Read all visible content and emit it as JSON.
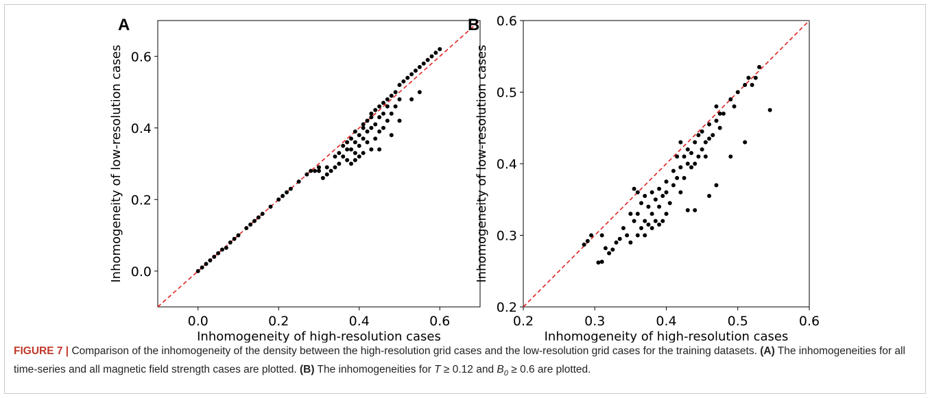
{
  "chart_data": [
    {
      "type": "scatter",
      "panel_label": "A",
      "xlabel": "Inhomogeneity of high-resolution cases",
      "ylabel": "Inhomogeneity of low-resolution cases",
      "xlim": [
        -0.1,
        0.7
      ],
      "ylim": [
        -0.1,
        0.7
      ],
      "xticks": [
        0.0,
        0.2,
        0.4,
        0.6
      ],
      "yticks": [
        0.0,
        0.2,
        0.4,
        0.6
      ],
      "xtick_labels": [
        "0.0",
        "0.2",
        "0.4",
        "0.6"
      ],
      "ytick_labels": [
        "0.0",
        "0.2",
        "0.4",
        "0.6"
      ],
      "grid": false,
      "reference_line": {
        "style": "dashed",
        "color": "#e02020",
        "label": "y = x"
      },
      "marker_color": "#000000",
      "x": [
        0.0,
        0.01,
        0.02,
        0.03,
        0.04,
        0.05,
        0.06,
        0.07,
        0.08,
        0.09,
        0.1,
        0.12,
        0.13,
        0.14,
        0.15,
        0.16,
        0.18,
        0.2,
        0.21,
        0.22,
        0.23,
        0.25,
        0.27,
        0.28,
        0.29,
        0.3,
        0.31,
        0.32,
        0.33,
        0.34,
        0.35,
        0.36,
        0.36,
        0.37,
        0.37,
        0.38,
        0.38,
        0.38,
        0.39,
        0.39,
        0.39,
        0.4,
        0.4,
        0.4,
        0.41,
        0.41,
        0.41,
        0.42,
        0.42,
        0.42,
        0.43,
        0.43,
        0.43,
        0.44,
        0.44,
        0.44,
        0.45,
        0.45,
        0.45,
        0.46,
        0.46,
        0.46,
        0.47,
        0.47,
        0.47,
        0.48,
        0.48,
        0.49,
        0.49,
        0.5,
        0.5,
        0.51,
        0.52,
        0.53,
        0.54,
        0.55,
        0.56,
        0.57,
        0.58,
        0.59,
        0.6,
        0.53,
        0.55,
        0.5,
        0.48,
        0.45,
        0.3,
        0.32,
        0.34,
        0.35,
        0.37,
        0.39,
        0.41,
        0.43
      ],
      "y": [
        0.0,
        0.01,
        0.02,
        0.03,
        0.04,
        0.05,
        0.06,
        0.065,
        0.08,
        0.09,
        0.1,
        0.12,
        0.13,
        0.14,
        0.15,
        0.16,
        0.18,
        0.2,
        0.21,
        0.22,
        0.23,
        0.25,
        0.27,
        0.28,
        0.28,
        0.28,
        0.26,
        0.27,
        0.28,
        0.29,
        0.3,
        0.32,
        0.35,
        0.31,
        0.36,
        0.3,
        0.34,
        0.37,
        0.31,
        0.33,
        0.36,
        0.32,
        0.35,
        0.38,
        0.33,
        0.37,
        0.4,
        0.36,
        0.39,
        0.42,
        0.34,
        0.4,
        0.44,
        0.37,
        0.41,
        0.45,
        0.39,
        0.43,
        0.46,
        0.4,
        0.44,
        0.47,
        0.42,
        0.46,
        0.48,
        0.44,
        0.49,
        0.46,
        0.5,
        0.48,
        0.52,
        0.53,
        0.54,
        0.55,
        0.56,
        0.57,
        0.58,
        0.59,
        0.6,
        0.61,
        0.62,
        0.48,
        0.5,
        0.42,
        0.38,
        0.34,
        0.29,
        0.29,
        0.32,
        0.33,
        0.34,
        0.39,
        0.41,
        0.43
      ]
    },
    {
      "type": "scatter",
      "panel_label": "B",
      "xlabel": "Inhomogeneity of high-resolution cases",
      "ylabel": "Inhomogeneity of low-resolution cases",
      "xlim": [
        0.2,
        0.6
      ],
      "ylim": [
        0.2,
        0.6
      ],
      "xticks": [
        0.2,
        0.3,
        0.4,
        0.5,
        0.6
      ],
      "yticks": [
        0.2,
        0.3,
        0.4,
        0.5,
        0.6
      ],
      "xtick_labels": [
        "0.2",
        "0.3",
        "0.4",
        "0.5",
        "0.6"
      ],
      "ytick_labels": [
        "0.2",
        "0.3",
        "0.4",
        "0.5",
        "0.6"
      ],
      "grid": false,
      "reference_line": {
        "style": "dashed",
        "color": "#e02020",
        "label": "y = x"
      },
      "marker_color": "#000000",
      "x": [
        0.285,
        0.29,
        0.295,
        0.305,
        0.31,
        0.31,
        0.315,
        0.32,
        0.325,
        0.33,
        0.335,
        0.34,
        0.345,
        0.35,
        0.35,
        0.355,
        0.355,
        0.36,
        0.36,
        0.36,
        0.365,
        0.365,
        0.37,
        0.37,
        0.37,
        0.375,
        0.375,
        0.38,
        0.38,
        0.38,
        0.385,
        0.385,
        0.39,
        0.39,
        0.39,
        0.395,
        0.395,
        0.4,
        0.4,
        0.4,
        0.405,
        0.41,
        0.41,
        0.415,
        0.415,
        0.42,
        0.42,
        0.42,
        0.425,
        0.425,
        0.43,
        0.43,
        0.435,
        0.435,
        0.44,
        0.44,
        0.445,
        0.445,
        0.45,
        0.45,
        0.455,
        0.455,
        0.46,
        0.46,
        0.465,
        0.47,
        0.47,
        0.475,
        0.475,
        0.48,
        0.49,
        0.495,
        0.5,
        0.51,
        0.515,
        0.52,
        0.525,
        0.53,
        0.545,
        0.43,
        0.44,
        0.46,
        0.47,
        0.49,
        0.51
      ],
      "y": [
        0.287,
        0.292,
        0.3,
        0.262,
        0.3,
        0.263,
        0.282,
        0.275,
        0.28,
        0.29,
        0.295,
        0.31,
        0.3,
        0.33,
        0.29,
        0.32,
        0.365,
        0.3,
        0.33,
        0.36,
        0.31,
        0.345,
        0.3,
        0.32,
        0.355,
        0.315,
        0.34,
        0.31,
        0.33,
        0.36,
        0.32,
        0.35,
        0.315,
        0.34,
        0.365,
        0.32,
        0.355,
        0.33,
        0.36,
        0.375,
        0.345,
        0.37,
        0.39,
        0.38,
        0.41,
        0.36,
        0.395,
        0.43,
        0.38,
        0.41,
        0.4,
        0.42,
        0.395,
        0.415,
        0.4,
        0.43,
        0.41,
        0.44,
        0.42,
        0.445,
        0.41,
        0.43,
        0.435,
        0.455,
        0.44,
        0.46,
        0.48,
        0.45,
        0.47,
        0.47,
        0.49,
        0.48,
        0.5,
        0.51,
        0.52,
        0.51,
        0.52,
        0.535,
        0.475,
        0.335,
        0.335,
        0.355,
        0.37,
        0.41,
        0.43
      ]
    }
  ],
  "caption": {
    "figure_label": "FIGURE 7 |",
    "text_part1": " Comparison of the inhomogeneity of the density between the high-resolution grid cases and the low-resolution grid cases for the training datasets. ",
    "label_a": "(A)",
    "text_part2": " The inhomogeneities for all time-series and all magnetic field strength cases are plotted. ",
    "label_b": "(B)",
    "text_part3": " The inhomogeneities for ",
    "sym_t": "T",
    "cond_t": " ≥ 0.12 and ",
    "sym_b": "B",
    "sym_b_sub": "0",
    "cond_b": " ≥ 0.6 are plotted."
  }
}
